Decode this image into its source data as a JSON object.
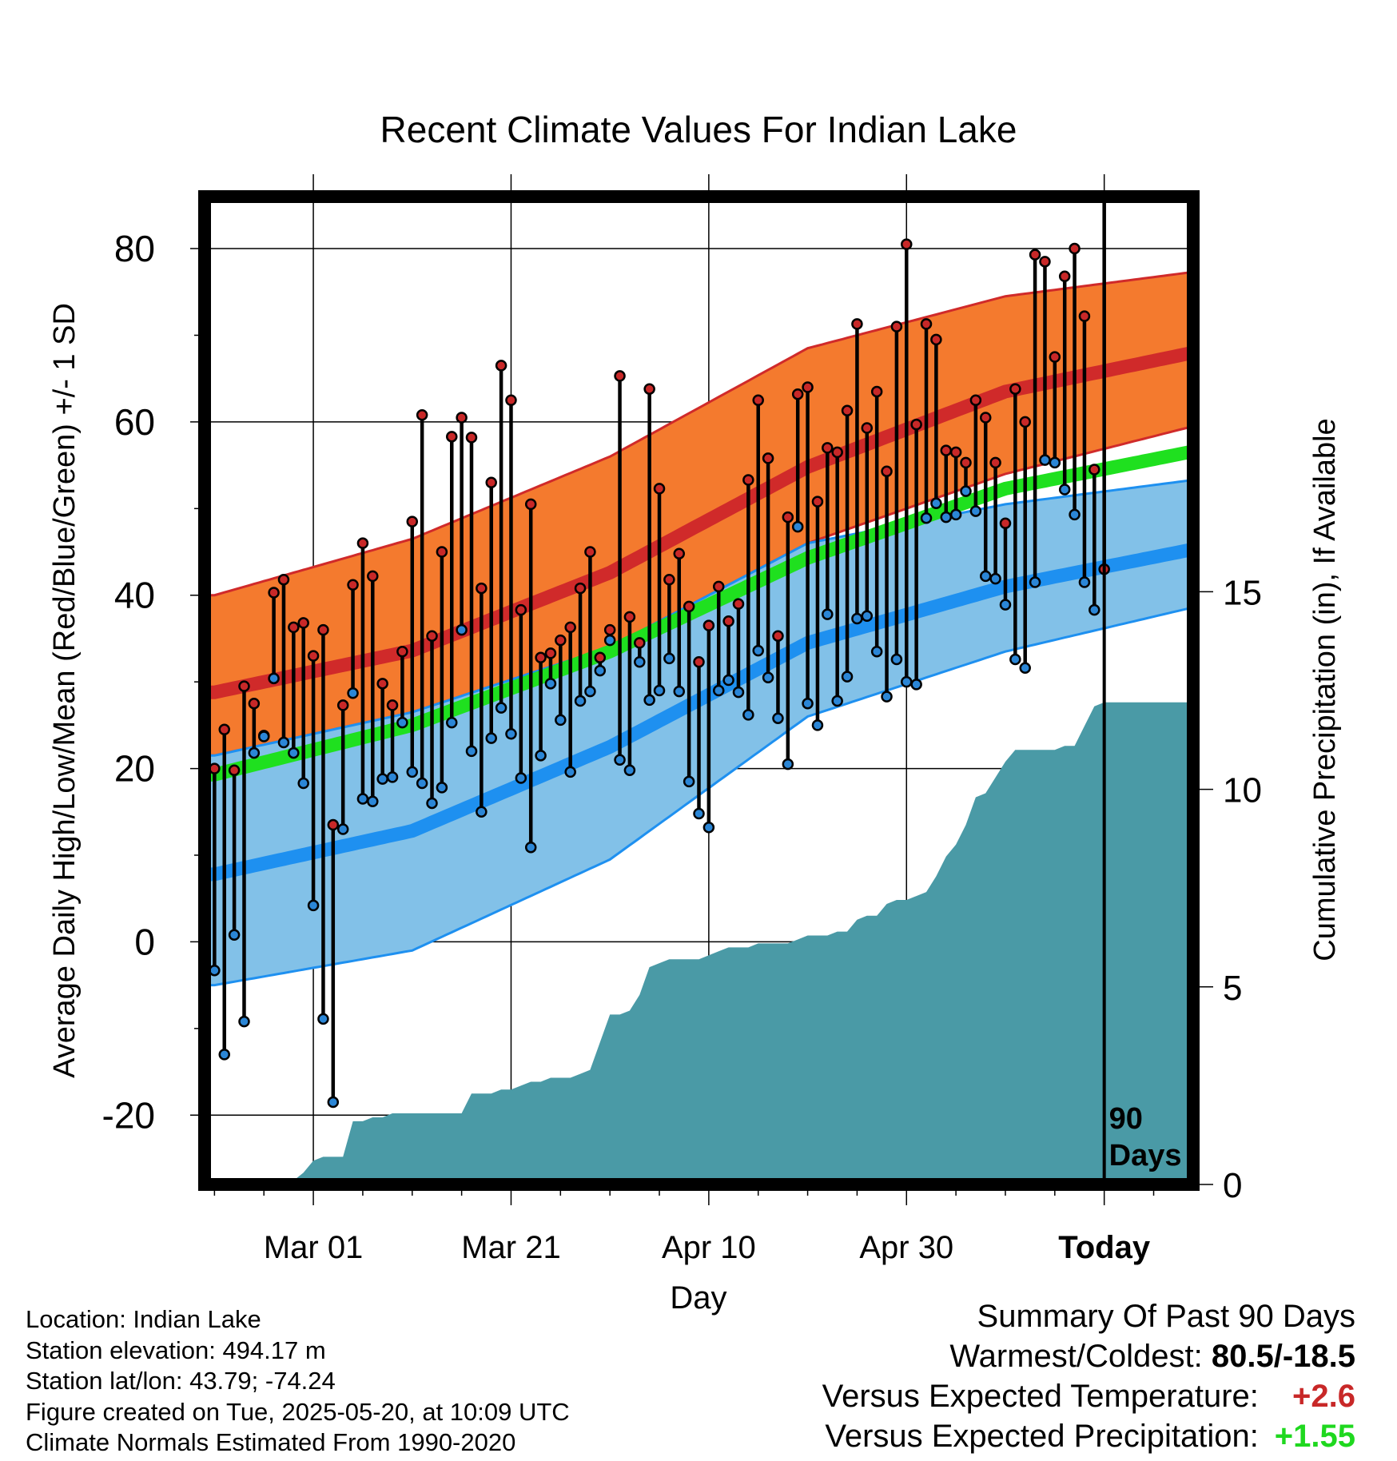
{
  "chart_data": {
    "type": "line",
    "title": "Recent Climate Values For Indian Lake",
    "xlabel": "Day",
    "ylabel": "Average Daily High/Low/Mean (Red/Blue/Green) +/- 1 SD",
    "y2label": "Cumulative Precipitation (in), If Available",
    "x_tick_labels": [
      "Mar 01",
      "Mar 21",
      "Apr 10",
      "Apr 30",
      "Today"
    ],
    "x_tick_days": [
      10,
      30,
      50,
      70,
      90
    ],
    "xlim": [
      -1,
      99
    ],
    "ylim": [
      -28,
      86
    ],
    "y_ticks": [
      -20,
      0,
      20,
      40,
      60,
      80
    ],
    "y2lim": [
      0,
      25
    ],
    "y2_ticks": [
      0,
      5,
      10,
      15
    ],
    "today_label": "90\nDays",
    "normals_days": [
      0,
      20,
      40,
      60,
      80,
      99
    ],
    "normal_high": [
      28.8,
      33.6,
      42.6,
      54.8,
      63.5,
      68.0
    ],
    "normal_high_upper": [
      40.0,
      46.5,
      56.0,
      68.5,
      74.5,
      77.3
    ],
    "normal_high_lower": [
      21.5,
      26.5,
      34.0,
      46.0,
      54.0,
      59.5
    ],
    "normal_low": [
      7.8,
      12.8,
      22.5,
      34.5,
      41.0,
      45.3
    ],
    "normal_low_upper": [
      21.5,
      26.5,
      34.0,
      46.0,
      50.5,
      53.3
    ],
    "normal_low_lower": [
      -5.0,
      -1.0,
      9.5,
      26.0,
      33.5,
      38.6
    ],
    "normal_mean": [
      19.3,
      25.0,
      33.5,
      44.3,
      52.3,
      56.6
    ],
    "daily_high": [
      20.0,
      24.5,
      19.8,
      29.5,
      27.5,
      23.8,
      40.3,
      41.8,
      36.3,
      36.8,
      33.0,
      36.0,
      13.5,
      27.3,
      41.2,
      46.0,
      42.2,
      29.8,
      27.3,
      33.5,
      48.5,
      60.8,
      35.3,
      45.0,
      58.3,
      60.5,
      58.2,
      40.8,
      53.0,
      66.5,
      62.5,
      38.3,
      50.5,
      32.8,
      33.3,
      34.8,
      36.3,
      40.8,
      45.0,
      32.8,
      36.0,
      65.3,
      37.5,
      34.5,
      63.8,
      52.3,
      41.8,
      44.8,
      38.7,
      32.3,
      36.5,
      41.0,
      37.0,
      39.0,
      53.3,
      62.5,
      55.8,
      35.3,
      49.0,
      63.2,
      64.0,
      50.8,
      57.0,
      56.5,
      61.3,
      71.3,
      59.3,
      63.5,
      54.3,
      71.0,
      80.5,
      59.7,
      71.3,
      69.5,
      56.7,
      56.5,
      55.3,
      62.5,
      60.5,
      55.3,
      48.3,
      63.8,
      60.0,
      79.3,
      78.5,
      67.5,
      76.8,
      80.0,
      72.2,
      54.5,
      43.0
    ],
    "daily_low": [
      -3.3,
      -13.0,
      0.8,
      -9.2,
      21.8,
      23.7,
      30.4,
      23.0,
      21.8,
      18.3,
      4.2,
      -8.9,
      -18.5,
      13.0,
      28.7,
      16.5,
      16.2,
      18.8,
      19.0,
      25.3,
      19.6,
      18.3,
      16.0,
      17.8,
      25.3,
      36.0,
      22.0,
      15.0,
      23.5,
      27.0,
      24.0,
      18.9,
      10.9,
      21.5,
      29.8,
      25.6,
      19.6,
      27.8,
      28.9,
      31.3,
      34.8,
      21.0,
      19.8,
      32.3,
      27.9,
      29.0,
      32.7,
      28.9,
      18.5,
      14.8,
      13.2,
      29.0,
      30.2,
      28.8,
      26.2,
      33.6,
      30.5,
      25.8,
      20.5,
      47.9,
      27.5,
      25.0,
      37.8,
      27.8,
      30.6,
      37.3,
      37.6,
      33.5,
      28.3,
      32.6,
      30.0,
      29.7,
      48.9,
      50.6,
      49.0,
      49.3,
      52.0,
      49.7,
      42.2,
      41.9,
      38.9,
      32.6,
      31.6,
      41.5,
      55.6,
      55.3,
      52.2,
      49.3,
      41.5,
      38.3
    ],
    "cumulative_precip": [
      0,
      0,
      0,
      0,
      0,
      0,
      0,
      0,
      0.1,
      0.3,
      0.6,
      0.7,
      0.7,
      0.7,
      1.6,
      1.6,
      1.7,
      1.7,
      1.8,
      1.8,
      1.8,
      1.8,
      1.8,
      1.8,
      1.8,
      1.8,
      2.3,
      2.3,
      2.3,
      2.4,
      2.4,
      2.5,
      2.6,
      2.6,
      2.7,
      2.7,
      2.7,
      2.8,
      2.9,
      3.6,
      4.3,
      4.3,
      4.4,
      4.8,
      5.5,
      5.6,
      5.7,
      5.7,
      5.7,
      5.7,
      5.8,
      5.9,
      6.0,
      6.0,
      6.0,
      6.1,
      6.1,
      6.1,
      6.1,
      6.2,
      6.3,
      6.3,
      6.3,
      6.4,
      6.4,
      6.7,
      6.8,
      6.8,
      7.1,
      7.2,
      7.2,
      7.3,
      7.4,
      7.8,
      8.3,
      8.6,
      9.1,
      9.8,
      9.9,
      10.3,
      10.7,
      11.0,
      11.0,
      11.0,
      11.0,
      11.0,
      11.1,
      11.1,
      11.6,
      12.1,
      12.2,
      12.2,
      12.2,
      12.2,
      12.2,
      12.2,
      12.2,
      12.2,
      12.2,
      12.2
    ]
  },
  "info": {
    "location": "Location: Indian Lake",
    "elevation": "Station elevation: 494.17 m",
    "latlon": "Station lat/lon: 43.79; -74.24",
    "created": "Figure created on Tue, 2025-05-20, at 10:09 UTC",
    "normals": "Climate Normals Estimated From 1990-2020"
  },
  "summary": {
    "heading": "Summary Of Past 90 Days",
    "warmest_label": "Warmest/Coldest:",
    "warmest_value": "80.5/-18.5",
    "temp_label": "Versus Expected Temperature:",
    "temp_value": "+2.6",
    "precip_label": "Versus Expected Precipitation:",
    "precip_value": "+1.55"
  },
  "colors": {
    "high_band": "#f47a2e",
    "high_line": "#d02a2a",
    "low_band": "#82c1e8",
    "low_line": "#1e90f0",
    "mean_line": "#1fe01f",
    "precip": "#4a9aa6",
    "high_dot": "#c82828",
    "low_dot": "#2b86d6"
  }
}
